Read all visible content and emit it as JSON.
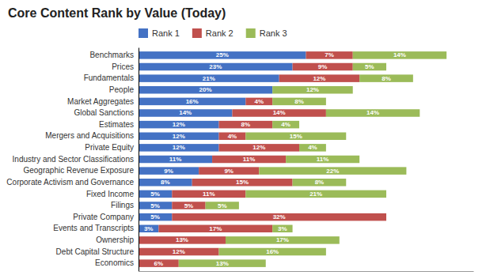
{
  "chart_data": {
    "type": "bar",
    "title": "Core Content Rank by Value (Today)",
    "orientation": "horizontal",
    "stacked": true,
    "data_labels": true,
    "tick_labels": "y",
    "grid": false,
    "legend": "top",
    "xlim": [
      0,
      50
    ],
    "categories": [
      "Benchmarks",
      "Prices",
      "Fundamentals",
      "People",
      "Market Aggregates",
      "Global Sanctions",
      "Estimates",
      "Mergers and Acquisitions",
      "Private Equity",
      "Industry and Sector Classifications",
      "Geographic Revenue Exposure",
      "Corporate Activism and Governance",
      "Fixed Income",
      "Filings",
      "Private Company",
      "Events and Transcripts",
      "Ownership",
      "Debt Capital Structure",
      "Economics"
    ],
    "series": [
      {
        "name": "Rank 1",
        "color": "#4472C4",
        "values": [
          25,
          23,
          21,
          20,
          16,
          14,
          12,
          12,
          12,
          11,
          9,
          8,
          5,
          5,
          5,
          3,
          0,
          0,
          0
        ],
        "value_labels": [
          "25%",
          "23%",
          "21%",
          "20%",
          "16%",
          "14%",
          "12%",
          "12%",
          "12%",
          "11%",
          "9%",
          "8%",
          "5%",
          "5%",
          "5%",
          "3%",
          null,
          null,
          null
        ]
      },
      {
        "name": "Rank 2",
        "color": "#C0504D",
        "values": [
          7,
          9,
          12,
          0,
          4,
          14,
          8,
          4,
          12,
          11,
          9,
          15,
          11,
          5,
          32,
          17,
          13,
          12,
          6
        ],
        "value_labels": [
          "7%",
          "9%",
          "12%",
          null,
          "4%",
          "14%",
          "8%",
          "4%",
          "12%",
          "11%",
          "9%",
          "15%",
          "11%",
          "5%",
          "32%",
          "17%",
          "13%",
          "12%",
          "6%"
        ]
      },
      {
        "name": "Rank 3",
        "color": "#9BBB59",
        "values": [
          14,
          5,
          8,
          12,
          8,
          14,
          4,
          15,
          4,
          11,
          22,
          8,
          21,
          5,
          0,
          3,
          17,
          16,
          13
        ],
        "value_labels": [
          "14%",
          "5%",
          "8%",
          "12%",
          "8%",
          "14%",
          "4%",
          "15%",
          "4%",
          "11%",
          "22%",
          "8%",
          "21%",
          "5%",
          null,
          "3%",
          "17%",
          "16%",
          "13%"
        ]
      }
    ]
  }
}
